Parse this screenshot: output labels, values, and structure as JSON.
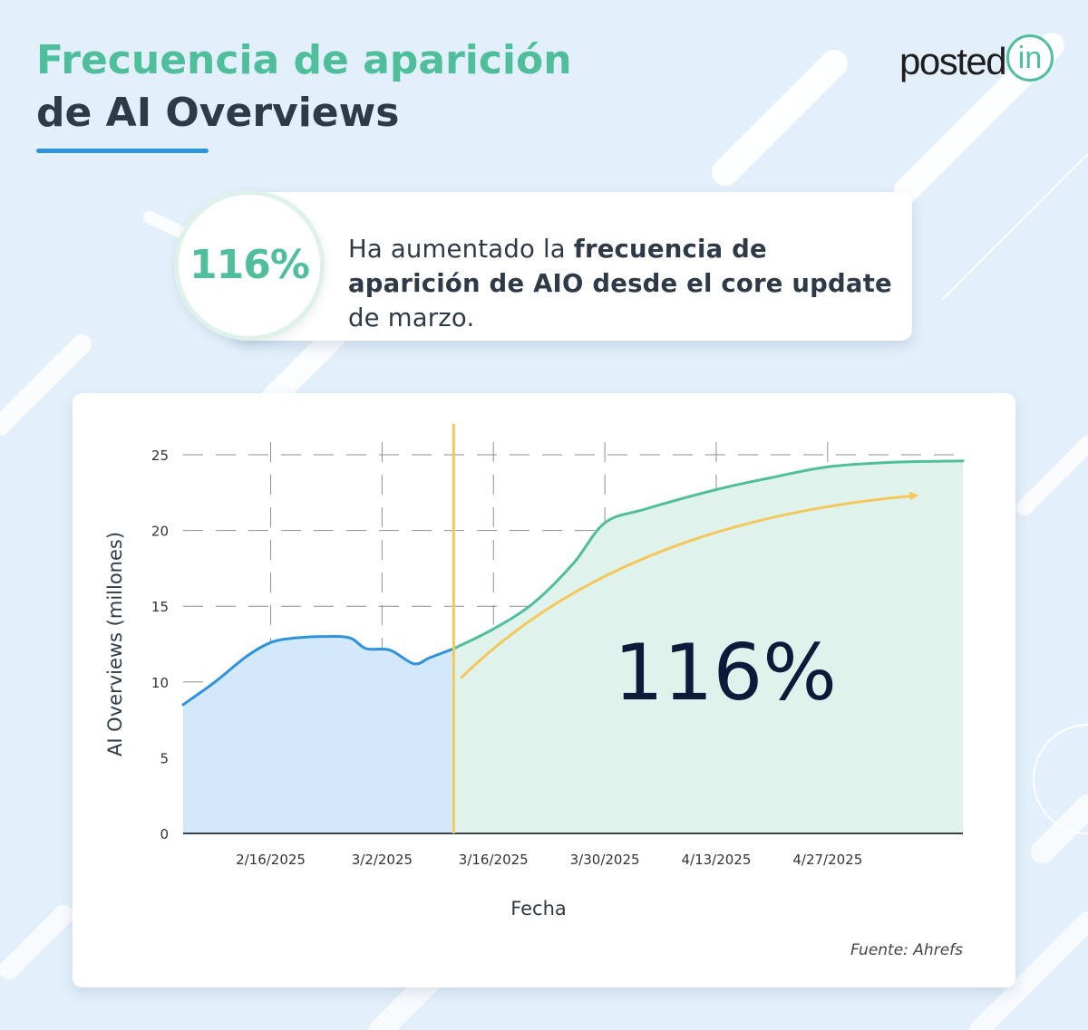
{
  "title": {
    "line1": "Frecuencia de aparición",
    "line2": "de AI Overviews"
  },
  "logo": {
    "text": "posted",
    "badge": "in",
    "color": "#4fbf9b"
  },
  "callout": {
    "value": "116%",
    "text_pre": "Ha aumentado la ",
    "text_bold": "frecuencia de aparición de AIO desde el core update",
    "text_post": " de marzo."
  },
  "colors": {
    "accent_green": "#4fbf9b",
    "title_dark": "#2e3a48",
    "line_blue": "#2d93dc",
    "area_blue": "#d3e8fb",
    "area_green": "#e0f2ec",
    "marker_yellow": "#f5c85c"
  },
  "chart_data": {
    "type": "area",
    "xlabel": "Fecha",
    "ylabel": "AI Overviews (millones)",
    "ylim": [
      0,
      25
    ],
    "yticks": [
      0,
      5,
      10,
      15,
      20,
      25
    ],
    "xticks": [
      "2/16/2025",
      "3/2/2025",
      "3/16/2025",
      "3/30/2025",
      "4/13/2025",
      "4/27/2025"
    ],
    "xlim": [
      "2025-02-05",
      "2025-05-14"
    ],
    "grid": true,
    "annotation_value": "116%",
    "source": "Fuente: Ahrefs",
    "vline_date": "2025-03-11",
    "series": [
      {
        "segment": "before",
        "color": "#2d93dc",
        "fill": "#d3e8fb",
        "points": [
          [
            "2025-02-05",
            8.5
          ],
          [
            "2025-02-09",
            10.0
          ],
          [
            "2025-02-13",
            11.7
          ],
          [
            "2025-02-16",
            12.6
          ],
          [
            "2025-02-19",
            12.9
          ],
          [
            "2025-02-23",
            13.0
          ],
          [
            "2025-02-26",
            12.9
          ],
          [
            "2025-02-28",
            12.2
          ],
          [
            "2025-03-03",
            12.1
          ],
          [
            "2025-03-06",
            11.2
          ],
          [
            "2025-03-08",
            11.6
          ],
          [
            "2025-03-11",
            12.2
          ]
        ]
      },
      {
        "segment": "after",
        "color": "#4fbf9b",
        "fill": "#e0f2ec",
        "points": [
          [
            "2025-03-11",
            12.2
          ],
          [
            "2025-03-16",
            13.5
          ],
          [
            "2025-03-21",
            15.2
          ],
          [
            "2025-03-26",
            17.8
          ],
          [
            "2025-03-30",
            20.5
          ],
          [
            "2025-04-04",
            21.4
          ],
          [
            "2025-04-13",
            22.7
          ],
          [
            "2025-04-20",
            23.5
          ],
          [
            "2025-04-27",
            24.2
          ],
          [
            "2025-05-05",
            24.5
          ],
          [
            "2025-05-14",
            24.6
          ]
        ]
      }
    ]
  }
}
